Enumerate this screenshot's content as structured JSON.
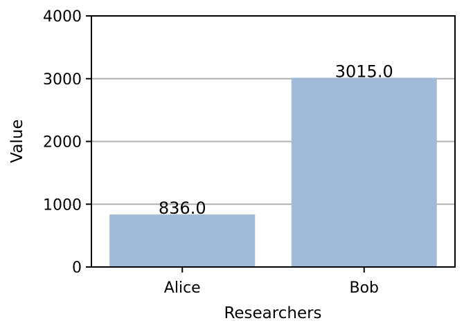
{
  "chart_data": {
    "type": "bar",
    "categories": [
      "Alice",
      "Bob"
    ],
    "values": [
      836.0,
      3015.0
    ],
    "data_labels": [
      "836.0",
      "3015.0"
    ],
    "xlabel": "Researchers",
    "ylabel": "Value",
    "ylim": [
      0,
      4000
    ],
    "yticks": [
      0,
      1000,
      2000,
      3000,
      4000
    ],
    "ytick_labels": [
      "0",
      "1000",
      "2000",
      "3000",
      "4000"
    ],
    "grid": "horizontal",
    "bar_color": "#9fbbd8",
    "grid_color": "#b0b0b0"
  }
}
